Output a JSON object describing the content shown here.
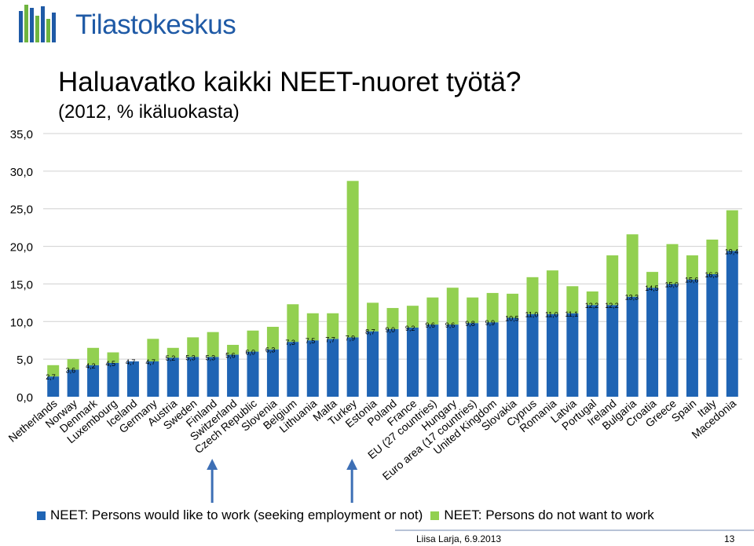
{
  "brand": {
    "name": "Tilastokeskus",
    "color": "#1f5aa6"
  },
  "chart_data": {
    "type": "bar",
    "stacked": true,
    "title": "Haluavatko kaikki NEET-nuoret työtä?",
    "subtitle": "(2012, % ikäluokasta)",
    "ylim": [
      0,
      35
    ],
    "yticks": [
      "0,0",
      "5,0",
      "10,0",
      "15,0",
      "20,0",
      "25,0",
      "30,0",
      "35,0"
    ],
    "grid": true,
    "legend_position": "bottom",
    "categories": [
      "Netherlands",
      "Norway",
      "Denmark",
      "Luxembourg",
      "Iceland",
      "Germany",
      "Austria",
      "Sweden",
      "Finland",
      "Switzerland",
      "Czech Republic",
      "Slovenia",
      "Belgium",
      "Lithuania",
      "Malta",
      "Turkey",
      "Estonia",
      "Poland",
      "France",
      "EU (27 countries)",
      "Hungary",
      "Euro area (17 countries)",
      "United Kingdom",
      "Slovakia",
      "Cyprus",
      "Romania",
      "Latvia",
      "Portugal",
      "Ireland",
      "Bulgaria",
      "Croatia",
      "Greece",
      "Spain",
      "Italy",
      "Macedonia"
    ],
    "series": [
      {
        "name": "NEET: Persons would like to work (seeking employment or not)",
        "color": "#1f64b4",
        "values": [
          2.7,
          3.6,
          4.2,
          4.5,
          4.7,
          4.7,
          5.2,
          5.3,
          5.3,
          5.6,
          6.0,
          6.3,
          7.3,
          7.5,
          7.7,
          7.9,
          8.7,
          9.0,
          9.2,
          9.6,
          9.6,
          9.8,
          9.9,
          10.5,
          11.0,
          11.0,
          11.1,
          12.2,
          12.2,
          13.3,
          14.5,
          15.0,
          15.6,
          16.3,
          19.4
        ],
        "labels": [
          "2,7",
          "3,6",
          "4,2",
          "4,5",
          "4,7",
          "4,7",
          "5,2",
          "5,3",
          "5,3",
          "5,6",
          "6,0",
          "6,3",
          "7,3",
          "7,5",
          "7,7",
          "7,9",
          "8,7",
          "9,0",
          "9,2",
          "9,6",
          "9,6",
          "9,8",
          "9,9",
          "10,5",
          "11,0",
          "11,0",
          "11,1",
          "12,2",
          "12,2",
          "13,3",
          "14,5",
          "15,0",
          "15,6",
          "16,3",
          "19,4"
        ]
      },
      {
        "name": "NEET: Persons do not want to work",
        "color": "#92d050",
        "values": [
          1.5,
          1.4,
          2.3,
          1.4,
          0.0,
          3.0,
          1.3,
          2.6,
          3.3,
          1.3,
          2.8,
          3.0,
          5.0,
          3.6,
          3.4,
          20.8,
          3.8,
          2.8,
          2.9,
          3.6,
          4.9,
          3.4,
          3.9,
          3.2,
          4.9,
          5.8,
          3.6,
          1.8,
          6.6,
          8.3,
          2.1,
          5.3,
          3.2,
          4.6,
          5.4
        ]
      }
    ]
  },
  "arrow_targets": [
    "Finland",
    "Turkey"
  ],
  "footer": {
    "author": "Liisa Larja, 6.9.2013",
    "page": "13"
  }
}
